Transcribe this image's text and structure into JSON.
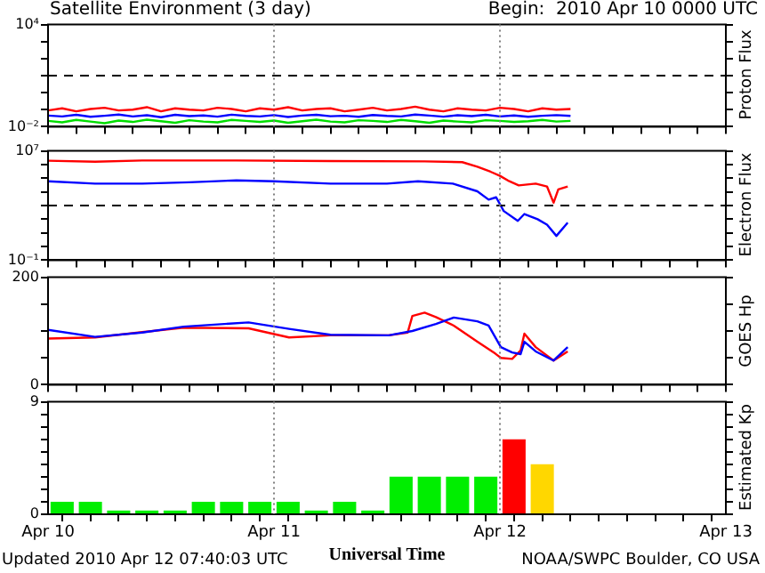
{
  "chart_data": [
    {
      "type": "line",
      "title": "Satellite Environment (3 day)",
      "subtitle": "Begin:  2010 Apr 10 0000 UTC",
      "ylabel": "Proton Flux",
      "log": "y",
      "tick_labels": "y",
      "xlim": [
        "2010-04-10",
        "2010-04-13"
      ],
      "xticks": [
        {
          "value": "2010-04-10",
          "label": null
        },
        {
          "value": "2010-04-10T03:00",
          "label": null
        },
        {
          "value": "2010-04-10T06:00",
          "label": null
        },
        {
          "value": "2010-04-10T09:00",
          "label": null
        },
        {
          "value": "2010-04-10T12:00",
          "label": null
        },
        {
          "value": "2010-04-10T15:00",
          "label": null
        },
        {
          "value": "2010-04-10T18:00",
          "label": null
        },
        {
          "value": "2010-04-10T21:00",
          "label": null
        },
        {
          "value": "2010-04-11",
          "label": null
        },
        {
          "value": "2010-04-11T03:00",
          "label": null
        },
        {
          "value": "2010-04-11T06:00",
          "label": null
        },
        {
          "value": "2010-04-11T09:00",
          "label": null
        },
        {
          "value": "2010-04-11T12:00",
          "label": null
        },
        {
          "value": "2010-04-11T15:00",
          "label": null
        },
        {
          "value": "2010-04-11T18:00",
          "label": null
        },
        {
          "value": "2010-04-11T21:00",
          "label": null
        },
        {
          "value": "2010-04-12",
          "label": null
        },
        {
          "value": "2010-04-12T03:00",
          "label": null
        },
        {
          "value": "2010-04-12T06:00",
          "label": null
        },
        {
          "value": "2010-04-12T09:00",
          "label": null
        },
        {
          "value": "2010-04-12T12:00",
          "label": null
        },
        {
          "value": "2010-04-12T15:00",
          "label": null
        },
        {
          "value": "2010-04-12T18:00",
          "label": null
        },
        {
          "value": "2010-04-12T21:00",
          "label": null
        },
        {
          "value": "2010-04-13",
          "label": null
        }
      ],
      "ylim": [
        0.01,
        10000
      ],
      "yticks": [
        {
          "value": 0.01,
          "label": "10⁻²"
        },
        {
          "value": 0.1,
          "label": null
        },
        {
          "value": 1,
          "label": null
        },
        {
          "value": 10,
          "label": null
        },
        {
          "value": 100,
          "label": null
        },
        {
          "value": 1000,
          "label": null
        },
        {
          "value": 10000,
          "label": "10⁴"
        }
      ],
      "x": [
        "2010-04-10T00:00",
        "2010-04-10T01:30",
        "2010-04-10T03:00",
        "2010-04-10T04:30",
        "2010-04-10T06:00",
        "2010-04-10T07:30",
        "2010-04-10T09:00",
        "2010-04-10T10:30",
        "2010-04-10T12:00",
        "2010-04-10T13:30",
        "2010-04-10T15:00",
        "2010-04-10T16:30",
        "2010-04-10T18:00",
        "2010-04-10T19:30",
        "2010-04-10T21:00",
        "2010-04-10T22:30",
        "2010-04-11T00:00",
        "2010-04-11T01:30",
        "2010-04-11T03:00",
        "2010-04-11T04:30",
        "2010-04-11T06:00",
        "2010-04-11T07:30",
        "2010-04-11T09:00",
        "2010-04-11T10:30",
        "2010-04-11T12:00",
        "2010-04-11T13:30",
        "2010-04-11T15:00",
        "2010-04-11T16:30",
        "2010-04-11T18:00",
        "2010-04-11T19:30",
        "2010-04-11T21:00",
        "2010-04-11T22:30",
        "2010-04-12T00:00",
        "2010-04-12T01:30",
        "2010-04-12T03:00",
        "2010-04-12T04:30",
        "2010-04-12T06:00",
        "2010-04-12T07:30"
      ],
      "series": [
        {
          "color": "#ff0000",
          "values": [
            0.09,
            0.12,
            0.08,
            0.11,
            0.13,
            0.09,
            0.1,
            0.14,
            0.08,
            0.12,
            0.1,
            0.09,
            0.13,
            0.11,
            0.08,
            0.12,
            0.1,
            0.14,
            0.09,
            0.11,
            0.12,
            0.08,
            0.1,
            0.13,
            0.09,
            0.11,
            0.15,
            0.1,
            0.08,
            0.12,
            0.1,
            0.09,
            0.13,
            0.11,
            0.08,
            0.12,
            0.1,
            0.11
          ]
        },
        {
          "color": "#0000ff",
          "values": [
            0.045,
            0.04,
            0.05,
            0.038,
            0.044,
            0.052,
            0.04,
            0.047,
            0.036,
            0.05,
            0.042,
            0.046,
            0.039,
            0.051,
            0.043,
            0.04,
            0.048,
            0.037,
            0.045,
            0.05,
            0.041,
            0.044,
            0.038,
            0.049,
            0.043,
            0.04,
            0.052,
            0.045,
            0.039,
            0.047,
            0.042,
            0.05,
            0.04,
            0.046,
            0.038,
            0.044,
            0.048,
            0.043
          ]
        },
        {
          "color": "#00dd00",
          "values": [
            0.022,
            0.018,
            0.025,
            0.02,
            0.016,
            0.023,
            0.019,
            0.026,
            0.021,
            0.017,
            0.024,
            0.02,
            0.018,
            0.025,
            0.022,
            0.019,
            0.023,
            0.017,
            0.021,
            0.026,
            0.02,
            0.018,
            0.024,
            0.022,
            0.019,
            0.025,
            0.021,
            0.017,
            0.023,
            0.02,
            0.018,
            0.024,
            0.022,
            0.019,
            0.021,
            0.025,
            0.02,
            0.022
          ]
        }
      ],
      "ref_lines": [
        {
          "axis": "y",
          "value": 10,
          "color": "#000000",
          "line_style": "dashed"
        },
        {
          "axis": "x",
          "value": "2010-04-11",
          "color": "#808080",
          "line_style": "dotted"
        },
        {
          "axis": "x",
          "value": "2010-04-12",
          "color": "#808080",
          "line_style": "dotted"
        }
      ]
    },
    {
      "type": "line",
      "ylabel": "Electron Flux",
      "log": "y",
      "tick_labels": "y",
      "xlim": [
        "2010-04-10",
        "2010-04-13"
      ],
      "xticks": [
        {
          "value": "2010-04-10",
          "label": null
        },
        {
          "value": "2010-04-10T03:00",
          "label": null
        },
        {
          "value": "2010-04-10T06:00",
          "label": null
        },
        {
          "value": "2010-04-10T09:00",
          "label": null
        },
        {
          "value": "2010-04-10T12:00",
          "label": null
        },
        {
          "value": "2010-04-10T15:00",
          "label": null
        },
        {
          "value": "2010-04-10T18:00",
          "label": null
        },
        {
          "value": "2010-04-10T21:00",
          "label": null
        },
        {
          "value": "2010-04-11",
          "label": null
        },
        {
          "value": "2010-04-11T03:00",
          "label": null
        },
        {
          "value": "2010-04-11T06:00",
          "label": null
        },
        {
          "value": "2010-04-11T09:00",
          "label": null
        },
        {
          "value": "2010-04-11T12:00",
          "label": null
        },
        {
          "value": "2010-04-11T15:00",
          "label": null
        },
        {
          "value": "2010-04-11T18:00",
          "label": null
        },
        {
          "value": "2010-04-11T21:00",
          "label": null
        },
        {
          "value": "2010-04-12",
          "label": null
        },
        {
          "value": "2010-04-12T03:00",
          "label": null
        },
        {
          "value": "2010-04-12T06:00",
          "label": null
        },
        {
          "value": "2010-04-12T09:00",
          "label": null
        },
        {
          "value": "2010-04-12T12:00",
          "label": null
        },
        {
          "value": "2010-04-12T15:00",
          "label": null
        },
        {
          "value": "2010-04-12T18:00",
          "label": null
        },
        {
          "value": "2010-04-12T21:00",
          "label": null
        },
        {
          "value": "2010-04-13",
          "label": null
        }
      ],
      "ylim": [
        0.1,
        10000000
      ],
      "yticks": [
        {
          "value": 0.1,
          "label": "10⁻¹"
        },
        {
          "value": 1,
          "label": null
        },
        {
          "value": 10,
          "label": null
        },
        {
          "value": 100,
          "label": null
        },
        {
          "value": 1000,
          "label": null
        },
        {
          "value": 10000,
          "label": null
        },
        {
          "value": 100000,
          "label": null
        },
        {
          "value": 1000000,
          "label": null
        },
        {
          "value": 10000000,
          "label": "10⁷"
        }
      ],
      "series": [
        {
          "color": "#ff0000",
          "x": [
            "2010-04-10T00:00",
            "2010-04-10T05:00",
            "2010-04-10T10:00",
            "2010-04-10T20:00",
            "2010-04-11T06:00",
            "2010-04-11T16:00",
            "2010-04-11T20:00",
            "2010-04-11T21:36",
            "2010-04-11T23:00",
            "2010-04-12T00:00",
            "2010-04-12T01:00",
            "2010-04-12T02:00",
            "2010-04-12T03:48",
            "2010-04-12T05:00",
            "2010-04-12T05:42",
            "2010-04-12T06:12",
            "2010-04-12T07:12"
          ],
          "values": [
            1900000,
            1600000,
            2000000,
            2000000,
            1800000,
            1700000,
            1500000,
            700000,
            300000,
            150000,
            60000,
            30000,
            40000,
            25000,
            1600,
            15000,
            25000
          ]
        },
        {
          "color": "#0000ff",
          "x": [
            "2010-04-10T00:00",
            "2010-04-10T05:00",
            "2010-04-10T10:00",
            "2010-04-10T15:00",
            "2010-04-10T20:00",
            "2010-04-11T00:00",
            "2010-04-11T06:00",
            "2010-04-11T12:00",
            "2010-04-11T15:18",
            "2010-04-11T19:00",
            "2010-04-11T21:36",
            "2010-04-11T22:48",
            "2010-04-11T23:36",
            "2010-04-12T00:24",
            "2010-04-12T01:54",
            "2010-04-12T02:36",
            "2010-04-12T04:00",
            "2010-04-12T05:00",
            "2010-04-12T06:00",
            "2010-04-12T07:12"
          ],
          "values": [
            60000,
            40000,
            40000,
            50000,
            70000,
            60000,
            40000,
            40000,
            60000,
            40000,
            11000,
            2700,
            4000,
            400,
            75,
            240,
            100,
            40,
            6,
            56
          ]
        }
      ],
      "ref_lines": [
        {
          "axis": "y",
          "value": 1000,
          "color": "#000000",
          "line_style": "dashed"
        },
        {
          "axis": "x",
          "value": "2010-04-11",
          "color": "#808080",
          "line_style": "dotted"
        },
        {
          "axis": "x",
          "value": "2010-04-12",
          "color": "#808080",
          "line_style": "dotted"
        }
      ]
    },
    {
      "type": "line",
      "ylabel": "GOES Hp",
      "tick_labels": "y",
      "xlim": [
        "2010-04-10",
        "2010-04-13"
      ],
      "xticks": [
        {
          "value": "2010-04-10",
          "label": null
        },
        {
          "value": "2010-04-10T03:00",
          "label": null
        },
        {
          "value": "2010-04-10T06:00",
          "label": null
        },
        {
          "value": "2010-04-10T09:00",
          "label": null
        },
        {
          "value": "2010-04-10T12:00",
          "label": null
        },
        {
          "value": "2010-04-10T15:00",
          "label": null
        },
        {
          "value": "2010-04-10T18:00",
          "label": null
        },
        {
          "value": "2010-04-10T21:00",
          "label": null
        },
        {
          "value": "2010-04-11",
          "label": null
        },
        {
          "value": "2010-04-11T03:00",
          "label": null
        },
        {
          "value": "2010-04-11T06:00",
          "label": null
        },
        {
          "value": "2010-04-11T09:00",
          "label": null
        },
        {
          "value": "2010-04-11T12:00",
          "label": null
        },
        {
          "value": "2010-04-11T15:00",
          "label": null
        },
        {
          "value": "2010-04-11T18:00",
          "label": null
        },
        {
          "value": "2010-04-11T21:00",
          "label": null
        },
        {
          "value": "2010-04-12",
          "label": null
        },
        {
          "value": "2010-04-12T03:00",
          "label": null
        },
        {
          "value": "2010-04-12T06:00",
          "label": null
        },
        {
          "value": "2010-04-12T09:00",
          "label": null
        },
        {
          "value": "2010-04-12T12:00",
          "label": null
        },
        {
          "value": "2010-04-12T15:00",
          "label": null
        },
        {
          "value": "2010-04-12T18:00",
          "label": null
        },
        {
          "value": "2010-04-12T21:00",
          "label": null
        },
        {
          "value": "2010-04-13",
          "label": null
        }
      ],
      "ylim": [
        0,
        200
      ],
      "yticks": [
        0,
        {
          "value": 50,
          "label": null
        },
        {
          "value": 100,
          "label": null
        },
        {
          "value": 150,
          "label": null
        },
        200
      ],
      "series": [
        {
          "color": "#0000ff",
          "x": [
            "2010-04-10T00:00",
            "2010-04-10T05:00",
            "2010-04-10T10:00",
            "2010-04-10T14:24",
            "2010-04-10T21:18",
            "2010-04-11T01:36",
            "2010-04-11T06:00",
            "2010-04-11T12:12",
            "2010-04-11T14:42",
            "2010-04-11T17:12",
            "2010-04-11T19:06",
            "2010-04-11T21:36",
            "2010-04-11T22:48",
            "2010-04-12T00:06",
            "2010-04-12T01:18",
            "2010-04-12T02:12",
            "2010-04-12T02:36",
            "2010-04-12T03:48",
            "2010-04-12T05:42",
            "2010-04-12T07:12"
          ],
          "values": [
            102,
            89,
            97,
            108,
            116,
            104,
            93,
            92,
            100,
            113,
            125,
            118,
            110,
            70,
            60,
            57,
            80,
            62,
            45,
            70
          ]
        },
        {
          "color": "#ff0000",
          "x": [
            "2010-04-10T00:00",
            "2010-04-10T05:00",
            "2010-04-10T10:00",
            "2010-04-10T14:24",
            "2010-04-10T21:18",
            "2010-04-11T01:36",
            "2010-04-11T06:00",
            "2010-04-11T12:12",
            "2010-04-11T14:12",
            "2010-04-11T14:42",
            "2010-04-11T16:00",
            "2010-04-11T17:12",
            "2010-04-11T19:06",
            "2010-04-11T21:36",
            "2010-04-11T23:30",
            "2010-04-12T00:06",
            "2010-04-12T01:18",
            "2010-04-12T02:12",
            "2010-04-12T02:36",
            "2010-04-12T03:48",
            "2010-04-12T05:42",
            "2010-04-12T07:12"
          ],
          "values": [
            86,
            88,
            98,
            106,
            105,
            88,
            92,
            92,
            97,
            128,
            134,
            126,
            110,
            80,
            58,
            50,
            48,
            64,
            95,
            70,
            45,
            62
          ]
        }
      ],
      "ref_lines": [
        {
          "axis": "x",
          "value": "2010-04-11",
          "color": "#808080",
          "line_style": "dotted"
        },
        {
          "axis": "x",
          "value": "2010-04-12",
          "color": "#808080",
          "line_style": "dotted"
        }
      ]
    },
    {
      "type": "bar",
      "ylabel": "Estimated Kp",
      "xlabel": "Universal Time",
      "xlim": [
        "2010-04-10",
        "2010-04-13"
      ],
      "xticks": [
        {
          "value": "2010-04-10",
          "label": "Apr 10"
        },
        {
          "value": "2010-04-10T03:00",
          "label": null
        },
        {
          "value": "2010-04-10T06:00",
          "label": null
        },
        {
          "value": "2010-04-10T09:00",
          "label": null
        },
        {
          "value": "2010-04-10T12:00",
          "label": null
        },
        {
          "value": "2010-04-10T15:00",
          "label": null
        },
        {
          "value": "2010-04-10T18:00",
          "label": null
        },
        {
          "value": "2010-04-10T21:00",
          "label": null
        },
        {
          "value": "2010-04-11",
          "label": "Apr 11"
        },
        {
          "value": "2010-04-11T03:00",
          "label": null
        },
        {
          "value": "2010-04-11T06:00",
          "label": null
        },
        {
          "value": "2010-04-11T09:00",
          "label": null
        },
        {
          "value": "2010-04-11T12:00",
          "label": null
        },
        {
          "value": "2010-04-11T15:00",
          "label": null
        },
        {
          "value": "2010-04-11T18:00",
          "label": null
        },
        {
          "value": "2010-04-11T21:00",
          "label": null
        },
        {
          "value": "2010-04-12",
          "label": "Apr 12"
        },
        {
          "value": "2010-04-12T03:00",
          "label": null
        },
        {
          "value": "2010-04-12T06:00",
          "label": null
        },
        {
          "value": "2010-04-12T09:00",
          "label": null
        },
        {
          "value": "2010-04-12T12:00",
          "label": null
        },
        {
          "value": "2010-04-12T15:00",
          "label": null
        },
        {
          "value": "2010-04-12T18:00",
          "label": null
        },
        {
          "value": "2010-04-12T21:00",
          "label": null
        },
        {
          "value": "2010-04-13",
          "label": "Apr 13"
        }
      ],
      "ylim": [
        0,
        9
      ],
      "yticks": [
        0,
        {
          "value": 1,
          "label": null
        },
        {
          "value": 2,
          "label": null
        },
        {
          "value": 3,
          "label": null
        },
        {
          "value": 4,
          "label": null
        },
        {
          "value": 5,
          "label": null
        },
        {
          "value": 6,
          "label": null
        },
        {
          "value": 7,
          "label": null
        },
        {
          "value": 8,
          "label": null
        },
        9
      ],
      "x": [
        "2010-04-10T01:30",
        "2010-04-10T04:30",
        "2010-04-10T07:30",
        "2010-04-10T10:30",
        "2010-04-10T13:30",
        "2010-04-10T16:30",
        "2010-04-10T19:30",
        "2010-04-10T22:30",
        "2010-04-11T01:30",
        "2010-04-11T04:30",
        "2010-04-11T07:30",
        "2010-04-11T10:30",
        "2010-04-11T13:30",
        "2010-04-11T16:30",
        "2010-04-11T19:30",
        "2010-04-11T22:30",
        "2010-04-12T01:30",
        "2010-04-12T04:30"
      ],
      "values": [
        1,
        1,
        0.3,
        0.3,
        0.3,
        1,
        1,
        1,
        1,
        0.3,
        1,
        0.3,
        3,
        3,
        3,
        3,
        6,
        4
      ],
      "colors": [
        "#00ee00",
        "#00ee00",
        "#00ee00",
        "#00ee00",
        "#00ee00",
        "#00ee00",
        "#00ee00",
        "#00ee00",
        "#00ee00",
        "#00ee00",
        "#00ee00",
        "#00ee00",
        "#00ee00",
        "#00ee00",
        "#00ee00",
        "#00ee00",
        "#ff0000",
        "#ffd700"
      ],
      "ref_lines": [
        {
          "axis": "x",
          "value": "2010-04-11",
          "color": "#808080",
          "line_style": "dotted"
        },
        {
          "axis": "x",
          "value": "2010-04-12",
          "color": "#808080",
          "line_style": "dotted"
        }
      ],
      "annotations": [
        "Updated 2010 Apr 12 07:40:03 UTC",
        "NOAA/SWPC Boulder, CO USA"
      ]
    }
  ]
}
